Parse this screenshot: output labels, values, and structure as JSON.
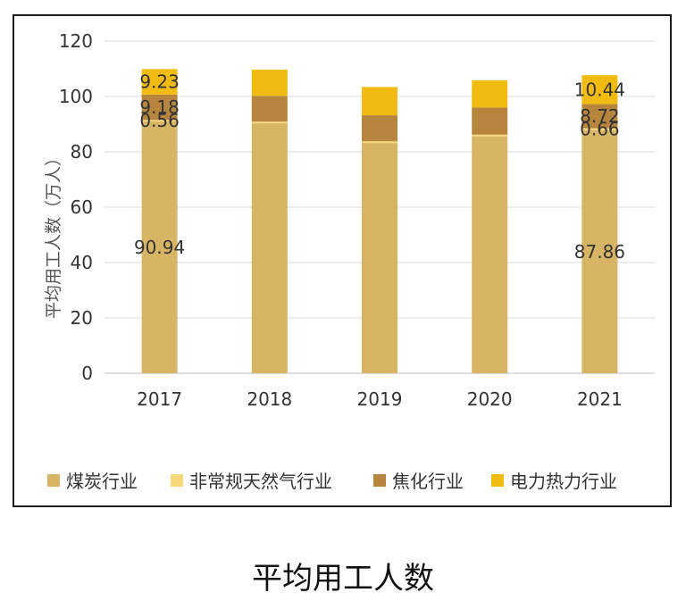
{
  "caption": "平均用工人数",
  "chart_data": {
    "type": "bar",
    "stacked": true,
    "title": "",
    "xlabel": "",
    "ylabel": "平均用工人数（万人）",
    "ylim": [
      0,
      120
    ],
    "yticks": [
      0,
      20,
      40,
      60,
      80,
      100,
      120
    ],
    "grid": true,
    "legend_position": "bottom",
    "categories": [
      "2017",
      "2018",
      "2019",
      "2020",
      "2021"
    ],
    "series": [
      {
        "name": "煤炭行业",
        "color": "#D8B565",
        "values": [
          90.94,
          90.3,
          83.2,
          85.6,
          87.86
        ]
      },
      {
        "name": "非常规天然气行业",
        "color": "#F7D77A",
        "values": [
          0.56,
          0.6,
          0.6,
          0.6,
          0.66
        ]
      },
      {
        "name": "焦化行业",
        "color": "#B8853E",
        "values": [
          9.18,
          9.3,
          9.4,
          9.8,
          8.72
        ]
      },
      {
        "name": "电力热力行业",
        "color": "#F2BB12",
        "values": [
          9.23,
          9.5,
          10.2,
          9.8,
          10.44
        ]
      }
    ],
    "data_labels": [
      {
        "category": "2017",
        "series": "煤炭行业",
        "text": "90.94"
      },
      {
        "category": "2017",
        "series": "非常规天然气行业",
        "text": "0.56"
      },
      {
        "category": "2017",
        "series": "焦化行业",
        "text": "9.18"
      },
      {
        "category": "2017",
        "series": "电力热力行业",
        "text": "9.23"
      },
      {
        "category": "2021",
        "series": "煤炭行业",
        "text": "87.86"
      },
      {
        "category": "2021",
        "series": "非常规天然气行业",
        "text": "0.66"
      },
      {
        "category": "2021",
        "series": "焦化行业",
        "text": "8.72"
      },
      {
        "category": "2021",
        "series": "电力热力行业",
        "text": "10.44"
      }
    ]
  }
}
